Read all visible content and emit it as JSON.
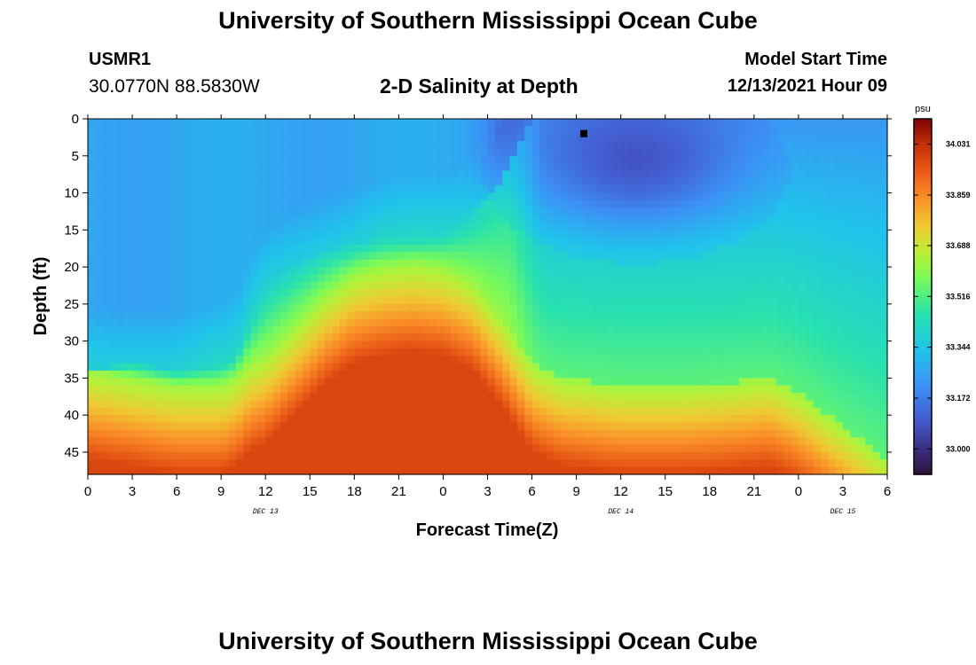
{
  "header": {
    "title": "University of Southern Mississippi Ocean Cube",
    "station_id": "USMR1",
    "coordinates": "30.0770N  88.5830W",
    "subtitle": "2-D Salinity at Depth",
    "start_label": "Model Start Time",
    "start_value": "12/13/2021 Hour 09"
  },
  "footer": {
    "title": "University of Southern Mississippi Ocean Cube"
  },
  "chart_data": {
    "type": "heatmap",
    "title": "2-D Salinity at Depth",
    "xlabel": "Forecast Time(Z)",
    "ylabel": "Depth (ft)",
    "x_tick_labels": [
      "0",
      "3",
      "6",
      "9",
      "12",
      "15",
      "18",
      "21",
      "0",
      "3",
      "6",
      "9",
      "12",
      "15",
      "18",
      "21",
      "0",
      "3",
      "6"
    ],
    "x_range_hours": [
      0,
      54
    ],
    "date_labels": [
      {
        "label": "DEC 13",
        "hour": 12
      },
      {
        "label": "DEC 14",
        "hour": 36
      },
      {
        "label": "DEC 15",
        "hour": 51
      }
    ],
    "y_ticks": [
      0,
      5,
      10,
      15,
      20,
      25,
      30,
      35,
      40,
      45
    ],
    "y_range_ft": [
      0,
      48
    ],
    "colorbar": {
      "unit": "psu",
      "ticks": [
        33.0,
        33.172,
        33.344,
        33.516,
        33.688,
        33.859,
        34.031
      ],
      "tick_labels": [
        "33.000",
        "33.172",
        "33.344",
        "33.516",
        "33.688",
        "33.859",
        "34.031"
      ],
      "range": [
        32.914,
        34.117
      ]
    },
    "marker": {
      "hour": 33.5,
      "depth_ft": 2
    },
    "surface_front": [
      [
        0,
        34
      ],
      [
        3,
        33
      ],
      [
        6,
        34
      ],
      [
        9,
        33
      ],
      [
        10,
        32
      ],
      [
        11,
        27
      ],
      [
        12,
        23
      ],
      [
        14,
        20
      ],
      [
        16,
        18
      ],
      [
        18,
        17
      ],
      [
        20,
        16
      ],
      [
        22,
        16
      ],
      [
        24,
        15.5
      ],
      [
        26,
        13
      ],
      [
        28,
        8
      ],
      [
        30,
        0
      ],
      [
        54,
        0
      ]
    ],
    "bottom_front": [
      [
        0,
        34
      ],
      [
        3,
        35
      ],
      [
        6,
        36
      ],
      [
        9,
        36
      ],
      [
        10,
        35
      ],
      [
        11,
        33
      ],
      [
        12,
        32
      ],
      [
        14,
        28
      ],
      [
        16,
        24
      ],
      [
        18,
        21
      ],
      [
        20,
        20
      ],
      [
        22,
        19.5
      ],
      [
        24,
        20
      ],
      [
        26,
        22
      ],
      [
        28,
        27
      ],
      [
        30,
        33
      ],
      [
        32,
        35
      ],
      [
        36,
        36
      ],
      [
        40,
        36
      ],
      [
        44,
        35.5
      ],
      [
        46,
        35
      ],
      [
        48,
        37
      ],
      [
        50,
        40
      ],
      [
        52,
        43
      ],
      [
        54,
        46
      ]
    ],
    "fresh_core": {
      "center_hour": 37,
      "center_depth_ft": 7,
      "radius_hours": 7,
      "radius_ft": 8.5
    }
  }
}
